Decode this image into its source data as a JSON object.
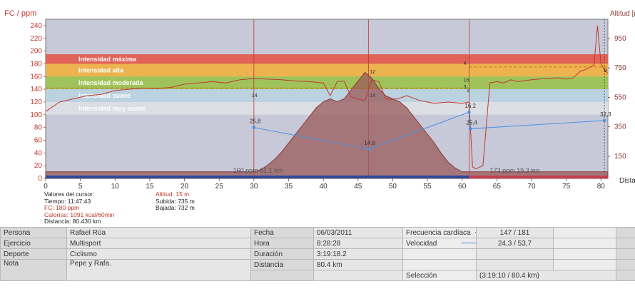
{
  "chart": {
    "y_left_title": "FC / ppm",
    "y_right_title": "Altitud [m]",
    "x_title": "Distancia [km]",
    "y_left_ticks": [
      "0",
      "20",
      "40",
      "60",
      "80",
      "100",
      "120",
      "140",
      "160",
      "180",
      "200",
      "220",
      "240"
    ],
    "y_right_ticks": [
      "150",
      "350",
      "550",
      "750",
      "950"
    ],
    "x_ticks": [
      "0",
      "5",
      "10",
      "15",
      "20",
      "25",
      "30",
      "35",
      "40",
      "45",
      "50",
      "55",
      "60",
      "65",
      "70",
      "75",
      "80"
    ],
    "zones": [
      {
        "label": "Intensidad máxima",
        "color": "#e3574a"
      },
      {
        "label": "Intensidad alta",
        "color": "#f0b040"
      },
      {
        "label": "Intensidad moderada",
        "color": "#9ac24d"
      },
      {
        "label": "Intensidad suave",
        "color": "#b9d3e2"
      },
      {
        "label": "Intensidad muy suave",
        "color": "#dde0e6"
      }
    ],
    "lap_labels": [
      "160 ppm 61.1 km",
      "173 ppm 19.3 km"
    ],
    "speed_points": [
      "25,8",
      "14,6",
      "16,2",
      "25,4",
      "32,3"
    ],
    "marker_values": [
      "14",
      "14",
      "12",
      "16",
      "4",
      "3",
      "4",
      "8"
    ]
  },
  "chart_data": {
    "type": "line",
    "xlabel": "Distancia [km]",
    "ylabel": "FC / ppm",
    "y2label": "Altitud [m]",
    "xlim": [
      0,
      81
    ],
    "ylim": [
      0,
      250
    ],
    "y2lim": [
      0,
      1080
    ],
    "series": [
      {
        "name": "Frecuencia cardíaca",
        "axis": "left",
        "color": "#c0392b",
        "x": [
          0,
          2,
          4,
          6,
          8,
          10,
          12,
          14,
          16,
          18,
          20,
          22,
          24,
          26,
          28,
          30,
          32,
          34,
          36,
          38,
          40,
          41,
          42,
          43,
          44,
          45,
          46,
          47,
          48,
          49,
          50,
          51,
          52,
          54,
          56,
          58,
          60,
          61,
          61.5,
          62,
          63,
          64,
          65,
          66,
          67,
          68,
          70,
          72,
          74,
          75,
          76,
          77,
          78,
          79,
          79.5,
          80,
          80.5,
          81
        ],
        "y": [
          105,
          120,
          125,
          130,
          132,
          138,
          140,
          142,
          141,
          143,
          148,
          150,
          152,
          150,
          155,
          157,
          156,
          155,
          153,
          152,
          150,
          130,
          152,
          153,
          128,
          125,
          122,
          155,
          152,
          125,
          124,
          126,
          130,
          122,
          118,
          120,
          118,
          120,
          18,
          15,
          20,
          150,
          152,
          150,
          155,
          152,
          155,
          157,
          158,
          156,
          158,
          168,
          172,
          178,
          240,
          180,
          170,
          165
        ]
      },
      {
        "name": "Altitud",
        "axis": "right",
        "color": "#8b3a3a",
        "x": [
          0,
          30,
          31,
          32,
          33,
          34,
          35,
          36,
          37,
          38,
          39,
          40,
          41,
          42,
          43,
          44,
          45,
          46,
          47,
          48,
          49,
          50,
          51,
          52,
          53,
          54,
          55,
          56,
          57,
          58,
          59,
          60,
          61,
          61.2,
          70,
          75,
          80,
          81
        ],
        "y": [
          45,
          45,
          60,
          90,
          130,
          180,
          240,
          300,
          360,
          420,
          480,
          520,
          540,
          520,
          540,
          600,
          660,
          720,
          680,
          610,
          560,
          540,
          520,
          480,
          420,
          360,
          300,
          240,
          170,
          110,
          70,
          45,
          45,
          45,
          45,
          45,
          45,
          45
        ]
      },
      {
        "name": "Velocidad",
        "axis": "left",
        "color": "#4a90e2",
        "x": [
          30,
          46.5,
          61,
          61.2,
          80.5
        ],
        "y": [
          80,
          46,
          104,
          78,
          91
        ]
      }
    ]
  },
  "cursor": {
    "title": "Valores del cursor:",
    "time": "Tiempo: 11:47:43",
    "hr": "FC: 180 ppm",
    "calories": "Calorías: 1091 kcal/60min",
    "distance": "Distancia: 80.430 km",
    "altitude": "Altitud: 15 m",
    "ascent": "Subida: 735 m",
    "descent": "Bajada: 732 m"
  },
  "info": {
    "person_label": "Persona",
    "person_value": "Rafael Rúa",
    "exercise_label": "Ejercicio",
    "exercise_value": "Multisport",
    "sport_label": "Deporte",
    "sport_value": "Ciclismo",
    "note_label": "Nota",
    "note_value": "Pepe y Rafa.",
    "date_label": "Fecha",
    "date_value": "06/03/2011",
    "hour_label": "Hora",
    "hour_value": "8:28:28",
    "duration_label": "Duración",
    "duration_value": "3:19:18.2",
    "distance_label": "Distancia",
    "distance_value": "80.4 km",
    "hr_label": "Frecuencia cardíaca",
    "hr_value": "147 / 181",
    "hr_color": "#c0392b",
    "speed_label": "Velocidad",
    "speed_value": "24,3 / 53,7",
    "speed_color": "#4a90e2",
    "selection_label": "Selección",
    "selection_value": "(3:19:10 / 80.4 km)"
  }
}
